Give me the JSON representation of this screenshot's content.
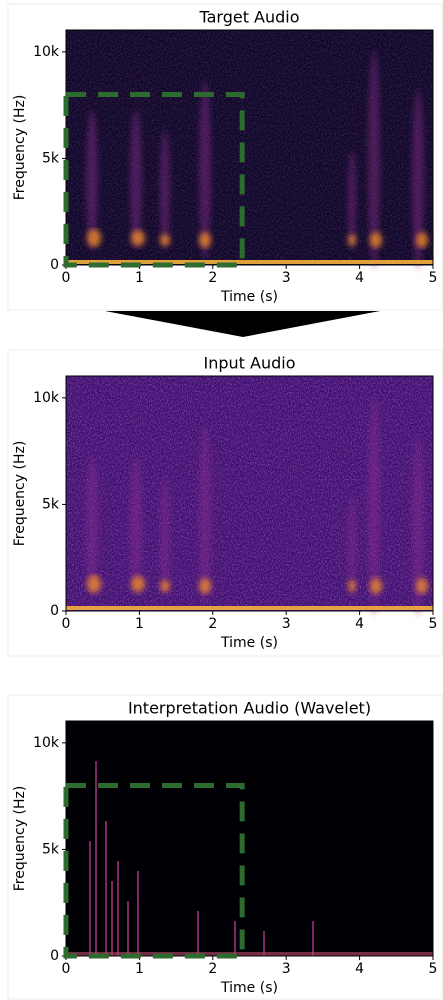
{
  "chart_data": [
    {
      "type": "spectrogram",
      "title": "Target Audio",
      "x_label": "Time (s)",
      "y_label": "Frequency (Hz)",
      "xlim": [
        0,
        5
      ],
      "ylim": [
        0,
        11025
      ],
      "xticks": [
        0,
        1,
        2,
        3,
        4,
        5
      ],
      "yticks": [
        0,
        {
          "value": 5000,
          "label": "5k"
        },
        {
          "value": 10000,
          "label": "10k"
        }
      ],
      "region": {
        "x": [
          0,
          2.4
        ],
        "y": [
          0,
          8000
        ],
        "color": "#2e6b2e"
      }
    },
    {
      "type": "spectrogram",
      "title": "Input Audio",
      "x_label": "Time (s)",
      "y_label": "Frequency (Hz)",
      "xlim": [
        0,
        5
      ],
      "ylim": [
        0,
        11025
      ],
      "xticks": [
        0,
        1,
        2,
        3,
        4,
        5
      ],
      "yticks": [
        0,
        {
          "value": 5000,
          "label": "5k"
        },
        {
          "value": 10000,
          "label": "10k"
        }
      ]
    },
    {
      "type": "spectrogram",
      "title": "Interpretation Audio (Wavelet)",
      "x_label": "Time (s)",
      "y_label": "Frequency (Hz)",
      "xlim": [
        0,
        5
      ],
      "ylim": [
        0,
        11025
      ],
      "xticks": [
        0,
        1,
        2,
        3,
        4,
        5
      ],
      "yticks": [
        0,
        {
          "value": 5000,
          "label": "5k"
        },
        {
          "value": 10000,
          "label": "10k"
        }
      ],
      "region": {
        "x": [
          0,
          2.4
        ],
        "y": [
          0,
          8000
        ],
        "color": "#2e6b2e"
      }
    }
  ]
}
